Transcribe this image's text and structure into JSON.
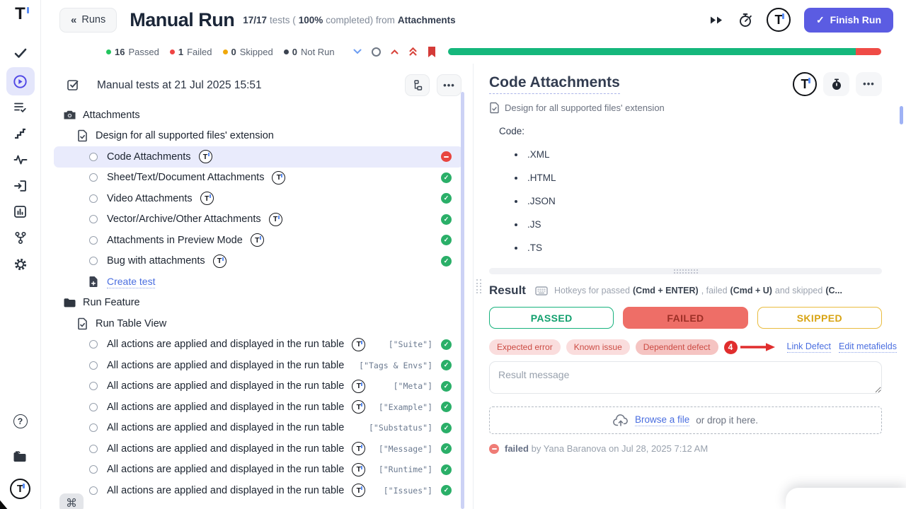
{
  "colors": {
    "accent": "#5b5ce2",
    "green": "#15b77c",
    "red": "#ef4b46",
    "amber": "#e9bc3e",
    "selected_row": "#e9ebfc"
  },
  "rail": {
    "items": [
      {
        "name": "check-icon",
        "active": false
      },
      {
        "name": "run-play-icon",
        "active": true
      },
      {
        "name": "list-check-icon",
        "active": false
      },
      {
        "name": "steps-icon",
        "active": false
      },
      {
        "name": "pulse-icon",
        "active": false
      },
      {
        "name": "import-icon",
        "active": false
      },
      {
        "name": "analytics-icon",
        "active": false
      },
      {
        "name": "branch-icon",
        "active": false
      },
      {
        "name": "gear-icon",
        "active": false
      }
    ],
    "bottom": [
      "help-icon",
      "projects-folder-icon",
      "brand-logo"
    ]
  },
  "header": {
    "back_label": "Runs",
    "title": "Manual Run",
    "tests_fraction": "17/17",
    "tests_word": "tests (",
    "percent": "100%",
    "completed_word": "completed) from",
    "source": "Attachments",
    "finish_label": "Finish Run"
  },
  "statusbar": {
    "passed_count": "16",
    "passed_label": "Passed",
    "failed_count": "1",
    "failed_label": "Failed",
    "skipped_count": "0",
    "skipped_label": "Skipped",
    "notrun_count": "0",
    "notrun_label": "Not Run",
    "progress": {
      "passed": 16,
      "failed": 1
    }
  },
  "tree": {
    "header_title": "Manual tests at 21 Jul 2025 15:51",
    "shortcut_key": "⌘",
    "items": [
      {
        "name": "tree-suite-attachments",
        "type": "suite",
        "icon": "camera-icon",
        "label": "Attachments",
        "indent": 0
      },
      {
        "name": "tree-doc-design",
        "type": "doc",
        "icon": "document-check-icon",
        "label": "Design for all supported files' extension",
        "indent": 1
      },
      {
        "name": "tree-test-code-attachments",
        "type": "test",
        "icon": "circle",
        "label": "Code Attachments",
        "indent": 2,
        "tlogo": true,
        "status": "failed",
        "selected": true
      },
      {
        "name": "tree-test-sheet-text-document",
        "type": "test",
        "icon": "circle",
        "label": "Sheet/Text/Document Attachments",
        "indent": 2,
        "tlogo": true,
        "status": "passed"
      },
      {
        "name": "tree-test-video",
        "type": "test",
        "icon": "circle",
        "label": "Video Attachments",
        "indent": 2,
        "tlogo": true,
        "status": "passed"
      },
      {
        "name": "tree-test-vector-archive-other",
        "type": "test",
        "icon": "circle",
        "label": "Vector/Archive/Other Attachments",
        "indent": 2,
        "tlogo": true,
        "status": "passed"
      },
      {
        "name": "tree-test-preview-mode",
        "type": "test",
        "icon": "circle",
        "label": "Attachments in Preview Mode",
        "indent": 2,
        "tlogo": true,
        "status": "passed"
      },
      {
        "name": "tree-test-bug-with-attachments",
        "type": "test",
        "icon": "circle",
        "label": "Bug with attachments",
        "indent": 2,
        "tlogo": true,
        "status": "passed"
      },
      {
        "name": "tree-create-test-link",
        "type": "create",
        "icon": "document-plus-icon",
        "label": "Create test",
        "indent": 2
      },
      {
        "name": "tree-folder-run-feature",
        "type": "suite",
        "icon": "folder-icon",
        "label": "Run Feature",
        "indent": 0
      },
      {
        "name": "tree-doc-run-table-view",
        "type": "doc",
        "icon": "document-check-icon",
        "label": "Run Table View",
        "indent": 1
      },
      {
        "name": "tree-test-run-table-suite",
        "type": "test",
        "icon": "circle",
        "label": "All actions are applied and displayed in the run table",
        "indent": 2,
        "tlogo": true,
        "badge": "[\"Suite\"]",
        "status": "passed"
      },
      {
        "name": "tree-test-run-table-tags-envs",
        "type": "test",
        "icon": "circle",
        "label": "All actions are applied and displayed in the run table",
        "indent": 2,
        "tlogo": false,
        "badge": "[\"Tags & Envs\"]",
        "status": "passed"
      },
      {
        "name": "tree-test-run-table-meta",
        "type": "test",
        "icon": "circle",
        "label": "All actions are applied and displayed in the run table",
        "indent": 2,
        "tlogo": true,
        "badge": "[\"Meta\"]",
        "status": "passed"
      },
      {
        "name": "tree-test-run-table-example",
        "type": "test",
        "icon": "circle",
        "label": "All actions are applied and displayed in the run table",
        "indent": 2,
        "tlogo": true,
        "badge": "[\"Example\"]",
        "status": "passed"
      },
      {
        "name": "tree-test-run-table-substatus",
        "type": "test",
        "icon": "circle",
        "label": "All actions are applied and displayed in the run table",
        "indent": 2,
        "tlogo": false,
        "badge": "[\"Substatus\"]",
        "status": "passed"
      },
      {
        "name": "tree-test-run-table-message",
        "type": "test",
        "icon": "circle",
        "label": "All actions are applied and displayed in the run table",
        "indent": 2,
        "tlogo": true,
        "badge": "[\"Message\"]",
        "status": "passed"
      },
      {
        "name": "tree-test-run-table-runtime",
        "type": "test",
        "icon": "circle",
        "label": "All actions are applied and displayed in the run table",
        "indent": 2,
        "tlogo": true,
        "badge": "[\"Runtime\"]",
        "status": "passed"
      },
      {
        "name": "tree-test-run-table-issues",
        "type": "test",
        "icon": "circle",
        "label": "All actions are applied and displayed in the run table",
        "indent": 2,
        "tlogo": true,
        "badge": "[\"Issues\"]",
        "status": "passed"
      }
    ]
  },
  "detail": {
    "title": "Code Attachments",
    "breadcrumb": "Design for all supported files' extension",
    "code_label": "Code:",
    "bullets": [
      ".XML",
      ".HTML",
      ".JSON",
      ".JS",
      ".TS"
    ],
    "result": {
      "heading": "Result",
      "hotkeys": {
        "seg1": "Hotkeys for passed",
        "key1": "(Cmd + ENTER)",
        "seg2": ", failed",
        "key2": "(Cmd + U)",
        "seg3": "and skipped",
        "key3": "(C..."
      },
      "passed_label": "PASSED",
      "failed_label": "FAILED",
      "skipped_label": "SKIPPED",
      "tags": [
        "Expected error",
        "Known issue",
        "Dependent defect"
      ],
      "annotation_number": "4",
      "link_defect": "Link Defect",
      "edit_metafields": "Edit metafields",
      "message_placeholder": "Result message",
      "upload_link": "Browse a file",
      "upload_rest": "or drop it here.",
      "status_word": "failed",
      "status_rest": "by Yana Baranova on Jul 28, 2025 7:12 AM"
    }
  }
}
